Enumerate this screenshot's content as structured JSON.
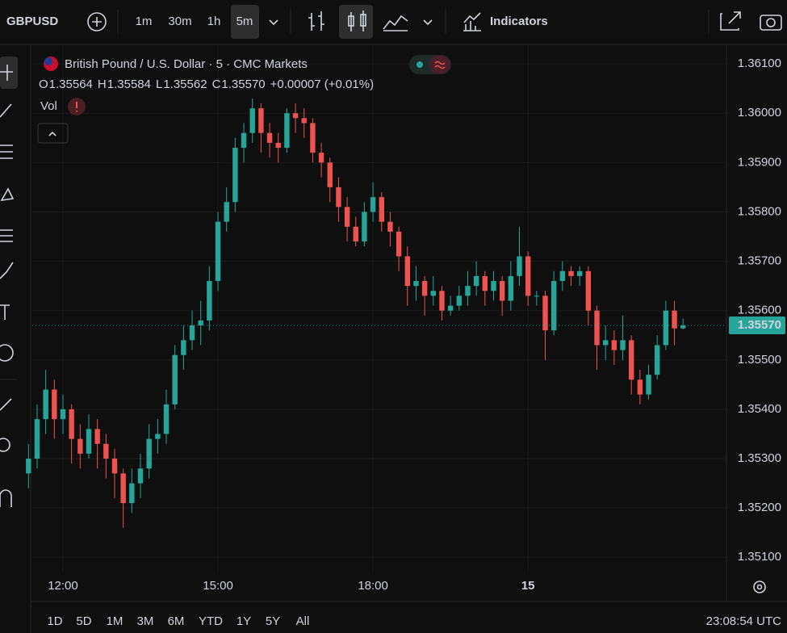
{
  "ui": {
    "symbol": "GBPUSD",
    "intervals": [
      "1m",
      "30m",
      "1h",
      "5m"
    ],
    "indicators": "Indicators",
    "legend_title": "British Pound / U.S. Dollar · 5 · CMC Markets",
    "ohlc": {
      "o_label": "O",
      "o": "1.35564",
      "h_label": "H",
      "h": "1.35584",
      "l_label": "L",
      "l": "1.35562",
      "c_label": "C",
      "c": "1.35570",
      "change": "+0.00007 (+0.01%)"
    },
    "volume_label": "Vol",
    "ranges": [
      "1D",
      "5D",
      "1M",
      "3M",
      "6M",
      "YTD",
      "1Y",
      "5Y",
      "All"
    ],
    "clock": "23:08:54 UTC"
  },
  "chart_data": {
    "type": "candlestick",
    "up_color": "#26a69a",
    "down_color": "#ef5350",
    "grid": true,
    "candles": [
      [
        1.3527,
        1.3533,
        1.3524,
        1.353
      ],
      [
        1.353,
        1.3541,
        1.3528,
        1.3538
      ],
      [
        1.3538,
        1.3548,
        1.3535,
        1.3544
      ],
      [
        1.3544,
        1.3546,
        1.3534,
        1.3538
      ],
      [
        1.3538,
        1.3543,
        1.3535,
        1.354
      ],
      [
        1.354,
        1.3541,
        1.3529,
        1.3534
      ],
      [
        1.3534,
        1.3537,
        1.3528,
        1.3531
      ],
      [
        1.3531,
        1.3539,
        1.353,
        1.3536
      ],
      [
        1.3536,
        1.3538,
        1.3528,
        1.3533
      ],
      [
        1.3533,
        1.3535,
        1.3526,
        1.353
      ],
      [
        1.353,
        1.3532,
        1.3522,
        1.3527
      ],
      [
        1.3527,
        1.3528,
        1.3516,
        1.3521
      ],
      [
        1.3521,
        1.3528,
        1.3519,
        1.3525
      ],
      [
        1.3525,
        1.3531,
        1.3522,
        1.3528
      ],
      [
        1.3528,
        1.3537,
        1.3526,
        1.3534
      ],
      [
        1.3534,
        1.3538,
        1.3531,
        1.3535
      ],
      [
        1.3535,
        1.3544,
        1.3533,
        1.3541
      ],
      [
        1.3541,
        1.3553,
        1.354,
        1.3551
      ],
      [
        1.3551,
        1.3557,
        1.3548,
        1.3554
      ],
      [
        1.3554,
        1.356,
        1.3552,
        1.3557
      ],
      [
        1.3557,
        1.3562,
        1.3553,
        1.3558
      ],
      [
        1.3558,
        1.3569,
        1.3556,
        1.3566
      ],
      [
        1.3566,
        1.358,
        1.3564,
        1.3578
      ],
      [
        1.3578,
        1.3585,
        1.3576,
        1.3582
      ],
      [
        1.3582,
        1.3595,
        1.358,
        1.3593
      ],
      [
        1.3593,
        1.3598,
        1.359,
        1.3596
      ],
      [
        1.3596,
        1.3603,
        1.3594,
        1.3601
      ],
      [
        1.3601,
        1.3602,
        1.3592,
        1.3596
      ],
      [
        1.3596,
        1.3598,
        1.3591,
        1.3594
      ],
      [
        1.3594,
        1.3596,
        1.359,
        1.3593
      ],
      [
        1.3593,
        1.3601,
        1.3592,
        1.36
      ],
      [
        1.36,
        1.3602,
        1.3596,
        1.3599
      ],
      [
        1.3599,
        1.3601,
        1.3595,
        1.3598
      ],
      [
        1.3598,
        1.3599,
        1.359,
        1.3592
      ],
      [
        1.3592,
        1.3594,
        1.3587,
        1.359
      ],
      [
        1.359,
        1.3591,
        1.3582,
        1.3585
      ],
      [
        1.3585,
        1.3587,
        1.3578,
        1.3581
      ],
      [
        1.3581,
        1.3583,
        1.3574,
        1.3577
      ],
      [
        1.3577,
        1.3579,
        1.3573,
        1.3574
      ],
      [
        1.3574,
        1.3582,
        1.3573,
        1.358
      ],
      [
        1.358,
        1.3586,
        1.3578,
        1.3583
      ],
      [
        1.3583,
        1.3584,
        1.3576,
        1.3578
      ],
      [
        1.3578,
        1.358,
        1.3573,
        1.3576
      ],
      [
        1.3576,
        1.3577,
        1.3568,
        1.3571
      ],
      [
        1.3571,
        1.3573,
        1.3561,
        1.3565
      ],
      [
        1.3565,
        1.3569,
        1.3562,
        1.3566
      ],
      [
        1.3566,
        1.3567,
        1.3559,
        1.3563
      ],
      [
        1.3563,
        1.3567,
        1.3561,
        1.3564
      ],
      [
        1.3564,
        1.3565,
        1.3558,
        1.356
      ],
      [
        1.356,
        1.3563,
        1.3559,
        1.3561
      ],
      [
        1.3561,
        1.3565,
        1.356,
        1.3563
      ],
      [
        1.3563,
        1.3568,
        1.3561,
        1.3565
      ],
      [
        1.3565,
        1.357,
        1.3563,
        1.3567
      ],
      [
        1.3567,
        1.3568,
        1.3561,
        1.3564
      ],
      [
        1.3564,
        1.3568,
        1.3562,
        1.3566
      ],
      [
        1.3566,
        1.3567,
        1.3559,
        1.3562
      ],
      [
        1.3562,
        1.357,
        1.356,
        1.3567
      ],
      [
        1.3567,
        1.3577,
        1.3565,
        1.3571
      ],
      [
        1.3571,
        1.3572,
        1.3561,
        1.3563
      ],
      [
        1.3563,
        1.3564,
        1.3561,
        1.3563
      ],
      [
        1.3563,
        1.3564,
        1.355,
        1.3556
      ],
      [
        1.3556,
        1.3568,
        1.3555,
        1.3566
      ],
      [
        1.3566,
        1.357,
        1.3564,
        1.3568
      ],
      [
        1.3568,
        1.3569,
        1.3565,
        1.3567
      ],
      [
        1.3567,
        1.3569,
        1.3565,
        1.3568
      ],
      [
        1.3568,
        1.3569,
        1.3557,
        1.356
      ],
      [
        1.356,
        1.3561,
        1.3548,
        1.3553
      ],
      [
        1.3553,
        1.3557,
        1.355,
        1.3554
      ],
      [
        1.3554,
        1.3556,
        1.3549,
        1.3552
      ],
      [
        1.3552,
        1.3559,
        1.355,
        1.3554
      ],
      [
        1.3554,
        1.3555,
        1.3543,
        1.3546
      ],
      [
        1.3546,
        1.3548,
        1.3541,
        1.3543
      ],
      [
        1.3543,
        1.3549,
        1.3542,
        1.3547
      ],
      [
        1.3547,
        1.3555,
        1.3546,
        1.3553
      ],
      [
        1.3553,
        1.3562,
        1.3552,
        1.356
      ],
      [
        1.356,
        1.3562,
        1.3553,
        1.35564
      ],
      [
        1.35564,
        1.35584,
        1.35562,
        1.3557
      ]
    ],
    "xlim": [
      0.44,
      81.04
    ],
    "xticks": [
      {
        "value": 4,
        "label": "12:00"
      },
      {
        "value": 22,
        "label": "15:00"
      },
      {
        "value": 40,
        "label": "18:00"
      },
      {
        "value": 58,
        "label": "15"
      }
    ],
    "ylim": [
      1.35071,
      1.36128
    ],
    "yticks": [
      {
        "value": 1.351,
        "label": "1.35100"
      },
      {
        "value": 1.352,
        "label": "1.35200"
      },
      {
        "value": 1.353,
        "label": "1.35300"
      },
      {
        "value": 1.354,
        "label": "1.35400"
      },
      {
        "value": 1.355,
        "label": "1.35500"
      },
      {
        "value": 1.356,
        "label": "1.35600"
      },
      {
        "value": 1.357,
        "label": "1.35700"
      },
      {
        "value": 1.358,
        "label": "1.35800"
      },
      {
        "value": 1.359,
        "label": "1.35900"
      },
      {
        "value": 1.36,
        "label": "1.36000"
      },
      {
        "value": 1.361,
        "label": "1.36100"
      }
    ],
    "last_price": {
      "value": 1.3557,
      "label": "1.35570"
    }
  }
}
